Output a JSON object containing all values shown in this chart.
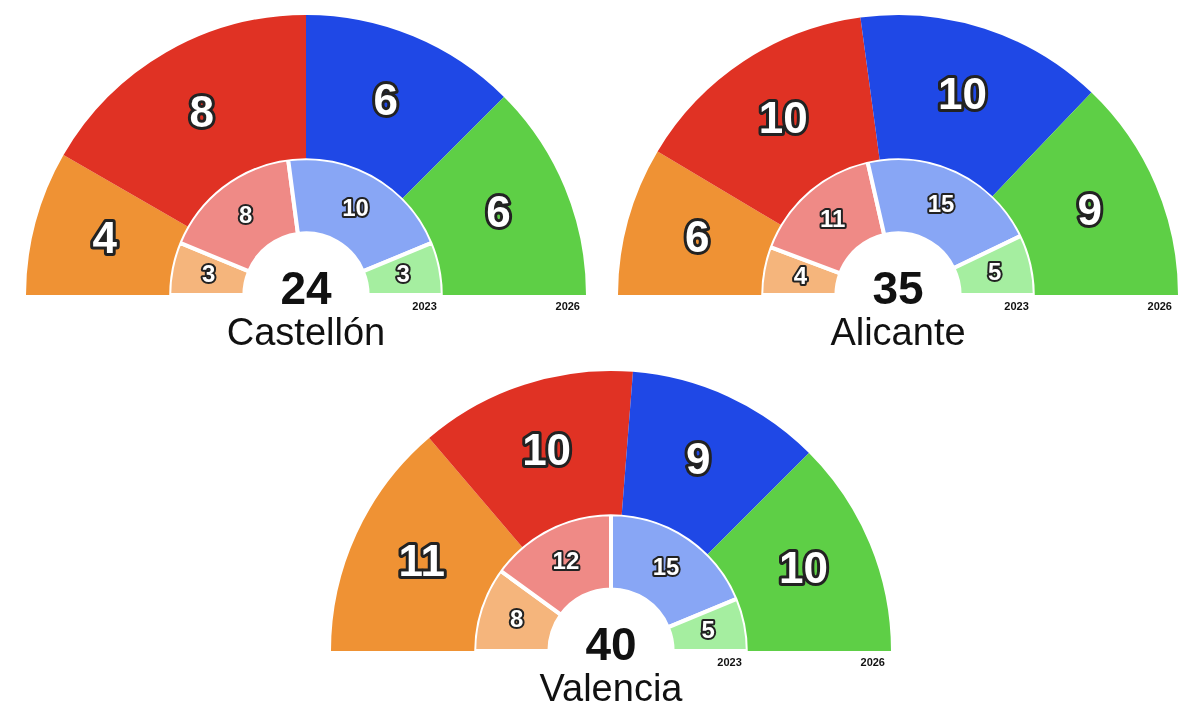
{
  "chart_data": [
    {
      "type": "donut",
      "title": "Castellón",
      "annotations": [
        "24"
      ],
      "categories": [
        null,
        null,
        null,
        null
      ],
      "data_labels": true,
      "series": [
        {
          "name": "2026",
          "colors": [
            "#ef9234",
            "#e03224",
            "#1f48e6",
            "#5ecf46"
          ],
          "values": [
            4,
            8,
            6,
            6
          ]
        },
        {
          "name": "2023",
          "colors": [
            "#f5b57c",
            "#ef8a86",
            "#88a6f5",
            "#a5eea0"
          ],
          "values": [
            3,
            8,
            10,
            3
          ]
        }
      ]
    },
    {
      "type": "donut",
      "title": "Alicante",
      "annotations": [
        "35"
      ],
      "categories": [
        null,
        null,
        null,
        null
      ],
      "data_labels": true,
      "series": [
        {
          "name": "2026",
          "colors": [
            "#ef9234",
            "#e03224",
            "#1f48e6",
            "#5ecf46"
          ],
          "values": [
            6,
            10,
            10,
            9
          ]
        },
        {
          "name": "2023",
          "colors": [
            "#f5b57c",
            "#ef8a86",
            "#88a6f5",
            "#a5eea0"
          ],
          "values": [
            4,
            11,
            15,
            5
          ]
        }
      ]
    },
    {
      "type": "donut",
      "title": "Valencia",
      "annotations": [
        "40"
      ],
      "categories": [
        null,
        null,
        null,
        null
      ],
      "data_labels": true,
      "series": [
        {
          "name": "2026",
          "colors": [
            "#ef9234",
            "#e03224",
            "#1f48e6",
            "#5ecf46"
          ],
          "values": [
            11,
            10,
            9,
            10
          ]
        },
        {
          "name": "2023",
          "colors": [
            "#f5b57c",
            "#ef8a86",
            "#88a6f5",
            "#a5eea0"
          ],
          "values": [
            8,
            12,
            15,
            5
          ]
        }
      ]
    }
  ]
}
